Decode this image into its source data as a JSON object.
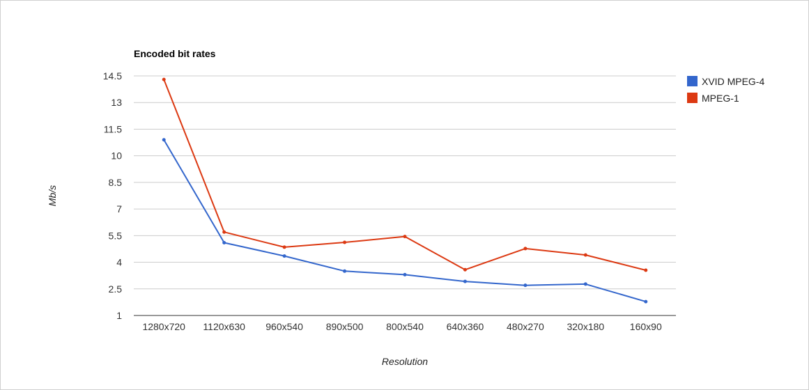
{
  "chart_data": {
    "type": "line",
    "title": "Encoded bit rates",
    "xlabel": "Resolution",
    "ylabel": "Mb/s",
    "categories": [
      "1280x720",
      "1120x630",
      "960x540",
      "890x500",
      "800x540",
      "640x360",
      "480x270",
      "320x180",
      "160x90"
    ],
    "y_ticks": [
      "1",
      "2.5",
      "4",
      "5.5",
      "7",
      "8.5",
      "10",
      "11.5",
      "13",
      "14.5"
    ],
    "ylim": [
      1,
      14.5
    ],
    "grid": true,
    "legend_position": "right",
    "series": [
      {
        "name": "XVID MPEG-4",
        "color": "#3366cc",
        "values": [
          10.9,
          5.1,
          4.35,
          3.5,
          3.3,
          2.92,
          2.7,
          2.77,
          1.78
        ]
      },
      {
        "name": "MPEG-1",
        "color": "#dc3912",
        "values": [
          14.3,
          5.7,
          4.85,
          5.12,
          5.45,
          3.58,
          4.77,
          4.41,
          3.55
        ]
      }
    ]
  }
}
